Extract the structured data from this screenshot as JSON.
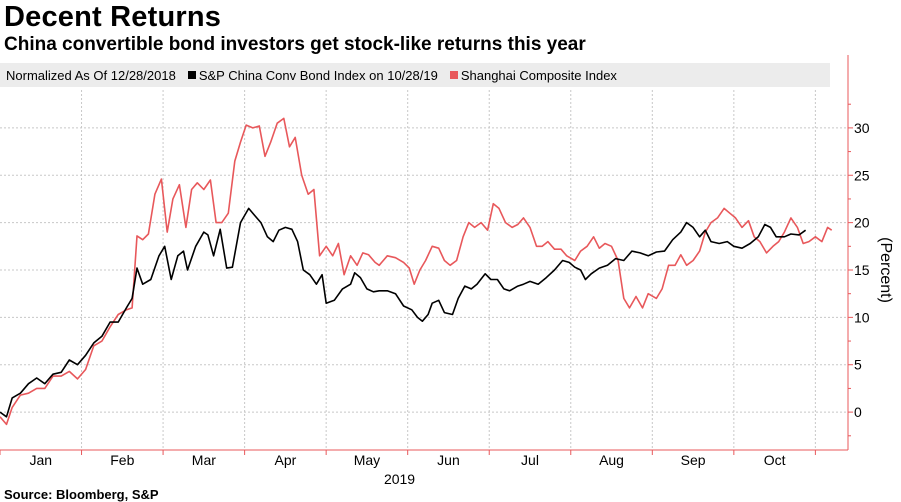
{
  "title": "Decent Returns",
  "subtitle": "China convertible bond investors get stock-like returns this year",
  "legend": {
    "normalized_label": "Normalized As Of 12/28/2018",
    "series1_label": "S&P China Conv Bond Index on 10/28/19",
    "series2_label": "Shanghai Composite Index"
  },
  "source": "Source: Bloomberg, S&P",
  "colors": {
    "bond": "#000000",
    "shanghai": "#e8585b",
    "axis": "#e8585b",
    "grid": "#c8c8c8"
  },
  "chart_data": {
    "type": "line",
    "title": "Decent Returns",
    "ylabel": "(Percent)",
    "xlabel": "2019",
    "ylim": [
      -4,
      34
    ],
    "yticks": [
      0,
      5,
      10,
      15,
      20,
      25,
      30
    ],
    "x_months": [
      "Jan",
      "Feb",
      "Mar",
      "Apr",
      "May",
      "Jun",
      "Jul",
      "Aug",
      "Sep",
      "Oct"
    ],
    "x_month_positions": [
      0.5,
      1.5,
      2.5,
      3.5,
      4.5,
      5.5,
      6.5,
      7.5,
      8.5,
      9.5
    ],
    "x_range": [
      0,
      10.4
    ],
    "series": [
      {
        "name": "S&P China Conv Bond Index on 10/28/19",
        "color": "#000000",
        "points": [
          [
            0,
            0
          ],
          [
            0.08,
            -0.5
          ],
          [
            0.15,
            1.5
          ],
          [
            0.25,
            2
          ],
          [
            0.35,
            3
          ],
          [
            0.45,
            3.6
          ],
          [
            0.55,
            3
          ],
          [
            0.65,
            4
          ],
          [
            0.75,
            4.2
          ],
          [
            0.85,
            5.5
          ],
          [
            0.95,
            5
          ],
          [
            1.05,
            6
          ],
          [
            1.15,
            7.3
          ],
          [
            1.25,
            8
          ],
          [
            1.35,
            9.5
          ],
          [
            1.45,
            9.5
          ],
          [
            1.55,
            11
          ],
          [
            1.62,
            12
          ],
          [
            1.68,
            15.2
          ],
          [
            1.75,
            13.5
          ],
          [
            1.85,
            14
          ],
          [
            1.95,
            16.5
          ],
          [
            2.02,
            17.5
          ],
          [
            2.1,
            14
          ],
          [
            2.18,
            16.5
          ],
          [
            2.25,
            17
          ],
          [
            2.3,
            15
          ],
          [
            2.4,
            17.5
          ],
          [
            2.5,
            19
          ],
          [
            2.55,
            18.7
          ],
          [
            2.62,
            16.5
          ],
          [
            2.7,
            19.3
          ],
          [
            2.78,
            15.2
          ],
          [
            2.85,
            15.3
          ],
          [
            2.95,
            20
          ],
          [
            3.05,
            21.5
          ],
          [
            3.12,
            20.8
          ],
          [
            3.2,
            20
          ],
          [
            3.28,
            18.5
          ],
          [
            3.35,
            18
          ],
          [
            3.42,
            19.2
          ],
          [
            3.5,
            19.5
          ],
          [
            3.58,
            19.3
          ],
          [
            3.65,
            18
          ],
          [
            3.72,
            15
          ],
          [
            3.8,
            14.5
          ],
          [
            3.88,
            13.5
          ],
          [
            3.95,
            14.5
          ],
          [
            4.0,
            11.5
          ],
          [
            4.1,
            11.8
          ],
          [
            4.2,
            13
          ],
          [
            4.3,
            13.5
          ],
          [
            4.35,
            14.7
          ],
          [
            4.42,
            14.2
          ],
          [
            4.5,
            13
          ],
          [
            4.58,
            12.7
          ],
          [
            4.65,
            12.8
          ],
          [
            4.75,
            12.8
          ],
          [
            4.85,
            12.5
          ],
          [
            4.95,
            11.2
          ],
          [
            5.05,
            10.8
          ],
          [
            5.12,
            10
          ],
          [
            5.18,
            9.6
          ],
          [
            5.25,
            10.3
          ],
          [
            5.3,
            11.5
          ],
          [
            5.38,
            11.8
          ],
          [
            5.45,
            10.5
          ],
          [
            5.55,
            10.3
          ],
          [
            5.62,
            12
          ],
          [
            5.7,
            13.3
          ],
          [
            5.78,
            13
          ],
          [
            5.85,
            13.5
          ],
          [
            5.95,
            14.6
          ],
          [
            6.02,
            14
          ],
          [
            6.1,
            14
          ],
          [
            6.18,
            13
          ],
          [
            6.25,
            12.8
          ],
          [
            6.35,
            13.3
          ],
          [
            6.42,
            13.5
          ],
          [
            6.5,
            13.8
          ],
          [
            6.6,
            13.5
          ],
          [
            6.7,
            14.2
          ],
          [
            6.8,
            15
          ],
          [
            6.9,
            16
          ],
          [
            6.98,
            15.8
          ],
          [
            7.05,
            15.3
          ],
          [
            7.12,
            15
          ],
          [
            7.18,
            14
          ],
          [
            7.25,
            14.6
          ],
          [
            7.35,
            15.2
          ],
          [
            7.45,
            15.5
          ],
          [
            7.55,
            16.2
          ],
          [
            7.65,
            16
          ],
          [
            7.75,
            17
          ],
          [
            7.85,
            16.8
          ],
          [
            7.95,
            16.5
          ],
          [
            8.05,
            16.9
          ],
          [
            8.15,
            17
          ],
          [
            8.25,
            18.2
          ],
          [
            8.35,
            19
          ],
          [
            8.42,
            20
          ],
          [
            8.5,
            19.5
          ],
          [
            8.58,
            18.5
          ],
          [
            8.65,
            19.2
          ],
          [
            8.72,
            18
          ],
          [
            8.82,
            17.8
          ],
          [
            8.92,
            18
          ],
          [
            9.0,
            17.5
          ],
          [
            9.1,
            17.3
          ],
          [
            9.2,
            17.8
          ],
          [
            9.3,
            18.5
          ],
          [
            9.38,
            19.8
          ],
          [
            9.45,
            19.5
          ],
          [
            9.52,
            18.5
          ],
          [
            9.62,
            18.5
          ],
          [
            9.7,
            18.8
          ],
          [
            9.8,
            18.7
          ],
          [
            9.88,
            19.2
          ]
        ]
      },
      {
        "name": "Shanghai Composite Index",
        "color": "#e8585b",
        "points": [
          [
            0,
            -0.5
          ],
          [
            0.08,
            -1.3
          ],
          [
            0.15,
            0.5
          ],
          [
            0.25,
            1.8
          ],
          [
            0.35,
            2
          ],
          [
            0.45,
            2.5
          ],
          [
            0.55,
            2.5
          ],
          [
            0.65,
            3.8
          ],
          [
            0.75,
            3.8
          ],
          [
            0.85,
            4.3
          ],
          [
            0.95,
            3.5
          ],
          [
            1.05,
            4.5
          ],
          [
            1.15,
            7
          ],
          [
            1.25,
            7.5
          ],
          [
            1.35,
            9
          ],
          [
            1.45,
            10.3
          ],
          [
            1.55,
            10.8
          ],
          [
            1.62,
            11
          ],
          [
            1.68,
            18.6
          ],
          [
            1.75,
            18.2
          ],
          [
            1.82,
            18.8
          ],
          [
            1.9,
            23
          ],
          [
            1.98,
            24.6
          ],
          [
            2.05,
            19
          ],
          [
            2.12,
            22.5
          ],
          [
            2.2,
            24
          ],
          [
            2.28,
            19.5
          ],
          [
            2.35,
            23.5
          ],
          [
            2.42,
            24.2
          ],
          [
            2.5,
            23.5
          ],
          [
            2.58,
            24.5
          ],
          [
            2.65,
            20
          ],
          [
            2.72,
            20
          ],
          [
            2.8,
            21
          ],
          [
            2.88,
            26.5
          ],
          [
            2.95,
            28.5
          ],
          [
            3.02,
            30.3
          ],
          [
            3.1,
            30
          ],
          [
            3.18,
            30.2
          ],
          [
            3.25,
            27
          ],
          [
            3.32,
            28.5
          ],
          [
            3.4,
            30.5
          ],
          [
            3.48,
            31
          ],
          [
            3.55,
            28
          ],
          [
            3.62,
            29
          ],
          [
            3.7,
            25
          ],
          [
            3.78,
            23
          ],
          [
            3.85,
            23.5
          ],
          [
            3.92,
            16.5
          ],
          [
            4.0,
            17.5
          ],
          [
            4.08,
            16.5
          ],
          [
            4.15,
            17.8
          ],
          [
            4.22,
            14.5
          ],
          [
            4.3,
            16.5
          ],
          [
            4.38,
            15.5
          ],
          [
            4.45,
            16.8
          ],
          [
            4.52,
            16.6
          ],
          [
            4.6,
            15.8
          ],
          [
            4.65,
            15.5
          ],
          [
            4.75,
            16.5
          ],
          [
            4.85,
            16.3
          ],
          [
            4.95,
            15.8
          ],
          [
            5.02,
            15.2
          ],
          [
            5.08,
            13.5
          ],
          [
            5.15,
            15
          ],
          [
            5.22,
            16
          ],
          [
            5.3,
            17.5
          ],
          [
            5.38,
            17.3
          ],
          [
            5.45,
            16
          ],
          [
            5.52,
            15.5
          ],
          [
            5.6,
            16
          ],
          [
            5.68,
            18.5
          ],
          [
            5.75,
            20
          ],
          [
            5.82,
            19.5
          ],
          [
            5.9,
            20
          ],
          [
            5.98,
            19.2
          ],
          [
            6.05,
            22
          ],
          [
            6.12,
            21.5
          ],
          [
            6.2,
            20
          ],
          [
            6.28,
            19.5
          ],
          [
            6.35,
            19.8
          ],
          [
            6.42,
            20.5
          ],
          [
            6.5,
            19.5
          ],
          [
            6.58,
            17.5
          ],
          [
            6.65,
            17.5
          ],
          [
            6.72,
            18
          ],
          [
            6.8,
            17.2
          ],
          [
            6.88,
            17.2
          ],
          [
            6.95,
            16.5
          ],
          [
            7.05,
            16
          ],
          [
            7.12,
            17
          ],
          [
            7.2,
            17.5
          ],
          [
            7.28,
            18.5
          ],
          [
            7.35,
            17.3
          ],
          [
            7.42,
            17.8
          ],
          [
            7.5,
            17.5
          ],
          [
            7.58,
            16
          ],
          [
            7.65,
            12
          ],
          [
            7.72,
            11
          ],
          [
            7.8,
            12.2
          ],
          [
            7.88,
            11
          ],
          [
            7.95,
            12.5
          ],
          [
            8.05,
            12
          ],
          [
            8.12,
            13
          ],
          [
            8.2,
            15.5
          ],
          [
            8.28,
            15.5
          ],
          [
            8.35,
            16.6
          ],
          [
            8.42,
            15.5
          ],
          [
            8.5,
            16
          ],
          [
            8.58,
            17
          ],
          [
            8.65,
            19
          ],
          [
            8.72,
            20
          ],
          [
            8.8,
            20.5
          ],
          [
            8.88,
            21.5
          ],
          [
            8.95,
            21
          ],
          [
            9.02,
            20.5
          ],
          [
            9.1,
            19.5
          ],
          [
            9.18,
            20.2
          ],
          [
            9.25,
            18.5
          ],
          [
            9.32,
            18
          ],
          [
            9.4,
            16.8
          ],
          [
            9.48,
            17.5
          ],
          [
            9.55,
            18
          ],
          [
            9.62,
            19
          ],
          [
            9.7,
            20.5
          ],
          [
            9.78,
            19.5
          ],
          [
            9.85,
            17.8
          ],
          [
            9.92,
            18
          ],
          [
            10.0,
            18.5
          ],
          [
            10.08,
            18
          ],
          [
            10.15,
            19.5
          ],
          [
            10.2,
            19.2
          ]
        ]
      }
    ]
  }
}
